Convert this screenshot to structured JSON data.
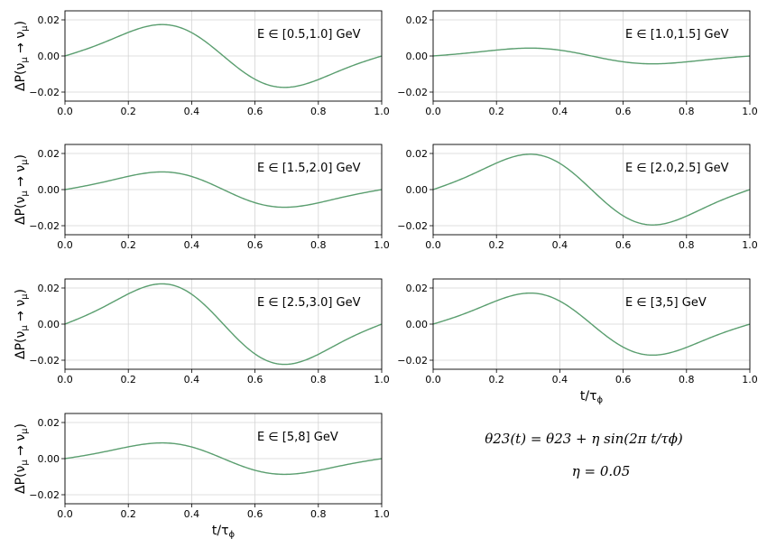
{
  "chart_data": [
    {
      "type": "line",
      "panel_label": "E ∈ [0.5,1.0] GeV",
      "amplitude": 0.016,
      "x": [
        0.0,
        0.2,
        0.4,
        0.6,
        0.8,
        1.0
      ],
      "xlim": [
        0.0,
        1.0
      ],
      "ylim": [
        -0.025,
        0.025
      ],
      "xticks": [
        "0.0",
        "0.2",
        "0.4",
        "0.6",
        "0.8",
        "1.0"
      ],
      "yticks": [
        "0.02",
        "0.00",
        "−0.02"
      ],
      "ylabel": "ΔP(νμ → νμ)",
      "xlabel": "",
      "grid": true,
      "color": "#5a9e6f"
    },
    {
      "type": "line",
      "panel_label": "E ∈ [1.0,1.5] GeV",
      "amplitude": 0.004,
      "xlim": [
        0.0,
        1.0
      ],
      "ylim": [
        -0.025,
        0.025
      ],
      "xticks": [
        "0.0",
        "0.2",
        "0.4",
        "0.6",
        "0.8",
        "1.0"
      ],
      "yticks": [
        "0.02",
        "0.00",
        "−0.02"
      ],
      "ylabel": "",
      "xlabel": "",
      "grid": true,
      "color": "#5a9e6f"
    },
    {
      "type": "line",
      "panel_label": "E ∈ [1.5,2.0] GeV",
      "amplitude": 0.009,
      "xlim": [
        0.0,
        1.0
      ],
      "ylim": [
        -0.025,
        0.025
      ],
      "xticks": [
        "0.0",
        "0.2",
        "0.4",
        "0.6",
        "0.8",
        "1.0"
      ],
      "yticks": [
        "0.02",
        "0.00",
        "−0.02"
      ],
      "ylabel": "ΔP(νμ → νμ)",
      "xlabel": "",
      "grid": true,
      "color": "#5a9e6f"
    },
    {
      "type": "line",
      "panel_label": "E ∈ [2.0,2.5] GeV",
      "amplitude": 0.018,
      "xlim": [
        0.0,
        1.0
      ],
      "ylim": [
        -0.025,
        0.025
      ],
      "xticks": [
        "0.0",
        "0.2",
        "0.4",
        "0.6",
        "0.8",
        "1.0"
      ],
      "yticks": [
        "0.02",
        "0.00",
        "−0.02"
      ],
      "ylabel": "",
      "xlabel": "",
      "grid": true,
      "color": "#5a9e6f"
    },
    {
      "type": "line",
      "panel_label": "E ∈ [2.5,3.0] GeV",
      "amplitude": 0.0205,
      "xlim": [
        0.0,
        1.0
      ],
      "ylim": [
        -0.025,
        0.025
      ],
      "xticks": [
        "0.0",
        "0.2",
        "0.4",
        "0.6",
        "0.8",
        "1.0"
      ],
      "yticks": [
        "0.02",
        "0.00",
        "−0.02"
      ],
      "ylabel": "ΔP(νμ → νμ)",
      "xlabel": "",
      "grid": true,
      "color": "#5a9e6f"
    },
    {
      "type": "line",
      "panel_label": "E ∈ [3,5] GeV",
      "amplitude": 0.0158,
      "xlim": [
        0.0,
        1.0
      ],
      "ylim": [
        -0.025,
        0.025
      ],
      "xticks": [
        "0.0",
        "0.2",
        "0.4",
        "0.6",
        "0.8",
        "1.0"
      ],
      "yticks": [
        "0.02",
        "0.00",
        "−0.02"
      ],
      "ylabel": "",
      "xlabel": "t/τϕ",
      "grid": true,
      "color": "#5a9e6f"
    },
    {
      "type": "line",
      "panel_label": "E ∈ [5,8] GeV",
      "amplitude": 0.008,
      "xlim": [
        0.0,
        1.0
      ],
      "ylim": [
        -0.025,
        0.025
      ],
      "xticks": [
        "0.0",
        "0.2",
        "0.4",
        "0.6",
        "0.8",
        "1.0"
      ],
      "yticks": [
        "0.02",
        "0.00",
        "−0.02"
      ],
      "ylabel": "ΔP(νμ → νμ)",
      "xlabel": "t/τϕ",
      "grid": true,
      "color": "#5a9e6f"
    }
  ],
  "annotation": {
    "formula": "θ23(t) = θ23 + η sin(2π t/τϕ)",
    "eta": "η = 0.05"
  }
}
